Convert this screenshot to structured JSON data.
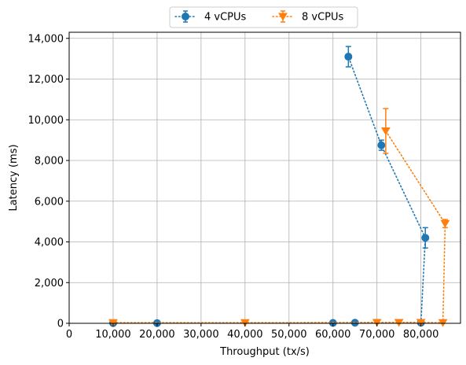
{
  "chart_data": {
    "type": "line",
    "xlabel": "Throughput (tx/s)",
    "ylabel": "Latency (ms)",
    "xlim": [
      0,
      89000
    ],
    "ylim": [
      0,
      14300
    ],
    "xticks": [
      0,
      10000,
      20000,
      30000,
      40000,
      50000,
      60000,
      70000,
      80000
    ],
    "xtick_labels": [
      "0",
      "10,000",
      "20,000",
      "30,000",
      "40,000",
      "50,000",
      "60,000",
      "70,000",
      "80,000"
    ],
    "yticks": [
      0,
      2000,
      4000,
      6000,
      8000,
      10000,
      12000,
      14000
    ],
    "ytick_labels": [
      "0",
      "2,000",
      "4,000",
      "6,000",
      "8,000",
      "10,000",
      "12,000",
      "14,000"
    ],
    "grid": true,
    "legend_position": "top-center-outside",
    "series": [
      {
        "name": "4 vCPUs",
        "color": "#1f77b4",
        "marker": "circle",
        "points": [
          {
            "x": 10000,
            "y": 10,
            "err": 0
          },
          {
            "x": 20000,
            "y": 10,
            "err": 0
          },
          {
            "x": 60000,
            "y": 20,
            "err": 0
          },
          {
            "x": 65000,
            "y": 30,
            "err": 0
          },
          {
            "x": 80000,
            "y": 30,
            "err": 0
          },
          {
            "x": 81000,
            "y": 4200,
            "err": 500
          },
          {
            "x": 71000,
            "y": 8750,
            "err": 250
          },
          {
            "x": 63500,
            "y": 13100,
            "err": 500
          }
        ]
      },
      {
        "name": "8 vCPUs",
        "color": "#ff7f0e",
        "marker": "triangle-down",
        "points": [
          {
            "x": 10000,
            "y": 30,
            "err": 0
          },
          {
            "x": 40000,
            "y": 30,
            "err": 0
          },
          {
            "x": 70000,
            "y": 40,
            "err": 0
          },
          {
            "x": 75000,
            "y": 40,
            "err": 0
          },
          {
            "x": 80000,
            "y": 40,
            "err": 0
          },
          {
            "x": 85000,
            "y": 30,
            "err": 0
          },
          {
            "x": 85500,
            "y": 4900,
            "err": 200
          },
          {
            "x": 72000,
            "y": 9450,
            "err": 1100
          }
        ]
      }
    ]
  }
}
